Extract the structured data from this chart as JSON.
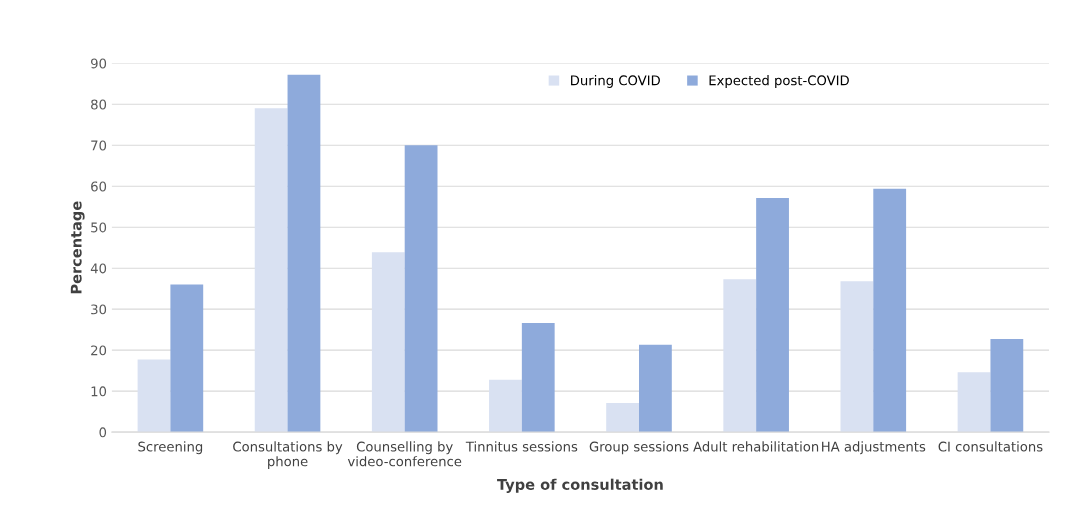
{
  "chart_data": {
    "type": "bar",
    "xlabel": "Type of consultation",
    "ylabel": "Percentage",
    "categories": [
      "Screening",
      "Consultations by phone",
      "Counselling by video-conference",
      "Tinnitus sessions",
      "Group sessions",
      "Adult rehabilitation",
      "HA adjustments",
      "CI consultations"
    ],
    "series": [
      {
        "name": "During COVID",
        "color": "#d9e1f2",
        "values": [
          17.7,
          79,
          43.9,
          12.8,
          7.1,
          37.3,
          36.8,
          14.6
        ]
      },
      {
        "name": "Expected post-COVID",
        "color": "#8eaadb",
        "values": [
          36,
          87.2,
          70,
          26.6,
          21.3,
          57.1,
          59.4,
          22.7
        ]
      }
    ],
    "ylim": [
      0,
      90
    ],
    "yticks": [
      0,
      10,
      20,
      30,
      40,
      50,
      60,
      70,
      80,
      90
    ],
    "grid": "y",
    "legend": "top right"
  }
}
